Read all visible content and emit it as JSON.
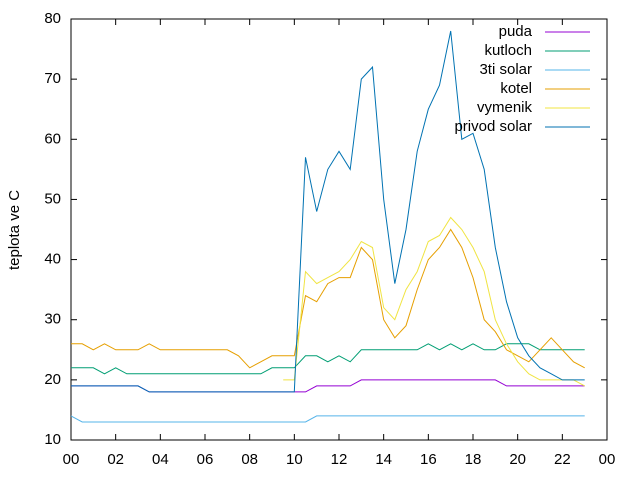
{
  "chart_data": {
    "type": "line",
    "ylabel": "teplota ve C",
    "x": [
      0,
      0.5,
      1,
      1.5,
      2,
      2.5,
      3,
      3.5,
      4,
      4.5,
      5,
      5.5,
      6,
      6.5,
      7,
      7.5,
      8,
      8.5,
      9,
      9.5,
      10,
      10.5,
      11,
      11.5,
      12,
      12.5,
      13,
      13.5,
      14,
      14.5,
      15,
      15.5,
      16,
      16.5,
      17,
      17.5,
      18,
      18.5,
      19,
      19.5,
      20,
      20.5,
      21,
      21.5,
      22,
      22.5,
      23
    ],
    "series": [
      {
        "name": "puda",
        "color": "#9400d3",
        "values": [
          19,
          19,
          19,
          19,
          19,
          19,
          19,
          18,
          18,
          18,
          18,
          18,
          18,
          18,
          18,
          18,
          18,
          18,
          18,
          18,
          18,
          18,
          19,
          19,
          19,
          19,
          20,
          20,
          20,
          20,
          20,
          20,
          20,
          20,
          20,
          20,
          20,
          20,
          20,
          19,
          19,
          19,
          19,
          19,
          19,
          19,
          19
        ]
      },
      {
        "name": "kutloch",
        "color": "#009e73",
        "values": [
          22,
          22,
          22,
          21,
          22,
          21,
          21,
          21,
          21,
          21,
          21,
          21,
          21,
          21,
          21,
          21,
          21,
          21,
          22,
          22,
          22,
          24,
          24,
          23,
          24,
          23,
          25,
          25,
          25,
          25,
          25,
          25,
          26,
          25,
          26,
          25,
          26,
          25,
          25,
          26,
          26,
          26,
          25,
          25,
          25,
          25,
          25
        ]
      },
      {
        "name": "3ti solar",
        "color": "#56b4e9",
        "values": [
          14,
          13,
          13,
          13,
          13,
          13,
          13,
          13,
          13,
          13,
          13,
          13,
          13,
          13,
          13,
          13,
          13,
          13,
          13,
          13,
          13,
          13,
          14,
          14,
          14,
          14,
          14,
          14,
          14,
          14,
          14,
          14,
          14,
          14,
          14,
          14,
          14,
          14,
          14,
          14,
          14,
          14,
          14,
          14,
          14,
          14,
          14
        ]
      },
      {
        "name": "kotel",
        "color": "#e69f00",
        "values": [
          26,
          26,
          25,
          26,
          25,
          25,
          25,
          26,
          25,
          25,
          25,
          25,
          25,
          25,
          25,
          24,
          22,
          23,
          24,
          24,
          24,
          34,
          33,
          36,
          37,
          37,
          42,
          40,
          30,
          27,
          29,
          35,
          40,
          42,
          45,
          42,
          37,
          30,
          28,
          25,
          24,
          23,
          25,
          27,
          25,
          23,
          22
        ]
      },
      {
        "name": "vymenik",
        "color": "#f0e442",
        "values": [
          null,
          null,
          null,
          null,
          null,
          null,
          null,
          null,
          null,
          null,
          null,
          null,
          null,
          null,
          null,
          null,
          null,
          null,
          null,
          20,
          20,
          38,
          36,
          37,
          38,
          40,
          43,
          42,
          32,
          30,
          35,
          38,
          43,
          44,
          47,
          45,
          42,
          38,
          30,
          26,
          23,
          21,
          20,
          20,
          20,
          20,
          19
        ]
      },
      {
        "name": "privod solar",
        "color": "#0072b2",
        "values": [
          19,
          19,
          19,
          19,
          19,
          19,
          19,
          18,
          18,
          18,
          18,
          18,
          18,
          18,
          18,
          18,
          18,
          18,
          18,
          18,
          18,
          57,
          48,
          55,
          58,
          55,
          70,
          72,
          50,
          36,
          45,
          58,
          65,
          69,
          78,
          60,
          61,
          55,
          42,
          33,
          27,
          24,
          22,
          21,
          20,
          20,
          20
        ]
      }
    ],
    "xlim": [
      0,
      24
    ],
    "xticks": [
      {
        "value": 0,
        "label": "00"
      },
      {
        "value": 2,
        "label": "02"
      },
      {
        "value": 4,
        "label": "04"
      },
      {
        "value": 6,
        "label": "06"
      },
      {
        "value": 8,
        "label": "08"
      },
      10,
      12,
      14,
      16,
      18,
      20,
      22,
      {
        "value": 24,
        "label": "00"
      }
    ],
    "ylim": [
      10,
      80
    ],
    "yticks": [
      10,
      20,
      30,
      40,
      50,
      60,
      70,
      80
    ],
    "legend": "top-right"
  }
}
